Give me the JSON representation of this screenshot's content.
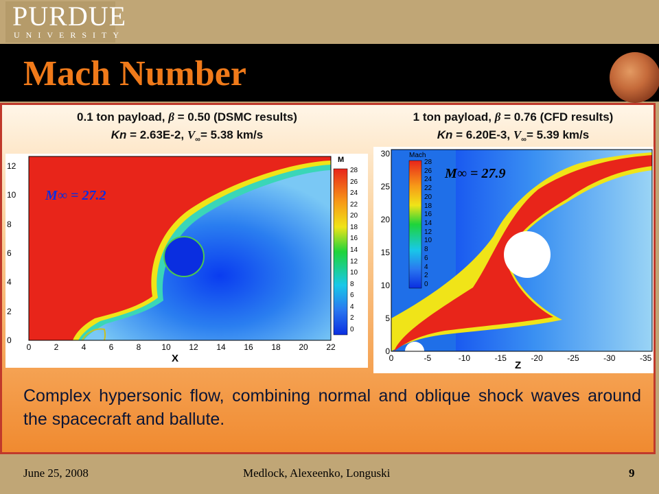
{
  "header": {
    "logo_main": "PURDUE",
    "logo_sub": "UNIVERSITY",
    "title": "Mach Number",
    "planet_icon": "mars-icon"
  },
  "left_panel": {
    "caption_pre": "0.1 ton payload, ",
    "caption_beta_sym": "β",
    "caption_beta_val": " = 0.50 (DSMC results)",
    "kn_label": "Kn",
    "kn_value": " = 2.63E-2, ",
    "v_sym": "V",
    "inf_sym": "∞",
    "v_value": "= 5.38 km/s",
    "mach_annotation": "M∞ = 27.2",
    "x_axis_title": "X",
    "x_ticks": [
      "0",
      "2",
      "4",
      "6",
      "8",
      "10",
      "12",
      "14",
      "16",
      "18",
      "20",
      "22"
    ],
    "y_ticks": [
      "0",
      "2",
      "4",
      "6",
      "8",
      "10",
      "12"
    ],
    "colorbar_title": "M",
    "colorbar_ticks": [
      "28",
      "26",
      "24",
      "22",
      "20",
      "18",
      "16",
      "14",
      "12",
      "10",
      "8",
      "6",
      "4",
      "2",
      "0"
    ]
  },
  "right_panel": {
    "caption_pre": "1 ton payload, ",
    "caption_beta_sym": "β",
    "caption_beta_val": " = 0.76 (CFD results)",
    "kn_label": "Kn",
    "kn_value": " = 6.20E-3, ",
    "v_sym": "V",
    "inf_sym": "∞",
    "v_value": "= 5.39 km/s",
    "mach_annotation": "M∞ = 27.9",
    "x_axis_title": "Z",
    "x_ticks": [
      "0",
      "-5",
      "-10",
      "-15",
      "-20",
      "-25",
      "-30",
      "-35"
    ],
    "y_ticks": [
      "0",
      "5",
      "10",
      "15",
      "20",
      "25",
      "30"
    ],
    "colorbar_title": "Mach",
    "colorbar_ticks": [
      "28",
      "26",
      "24",
      "22",
      "20",
      "18",
      "16",
      "14",
      "12",
      "10",
      "8",
      "6",
      "4",
      "2",
      "0"
    ]
  },
  "summary": "Complex hypersonic flow, combining normal and oblique shock waves around the spacecraft and ballute.",
  "footer": {
    "date": "June 25, 2008",
    "authors": "Medlock, Alexeenko, Longuski",
    "page": "9"
  },
  "colors": {
    "title_orange": "#f07a1a",
    "high_mach": "#e8251a",
    "low_mach": "#0a3cf0",
    "text_navy": "#0b1535"
  }
}
